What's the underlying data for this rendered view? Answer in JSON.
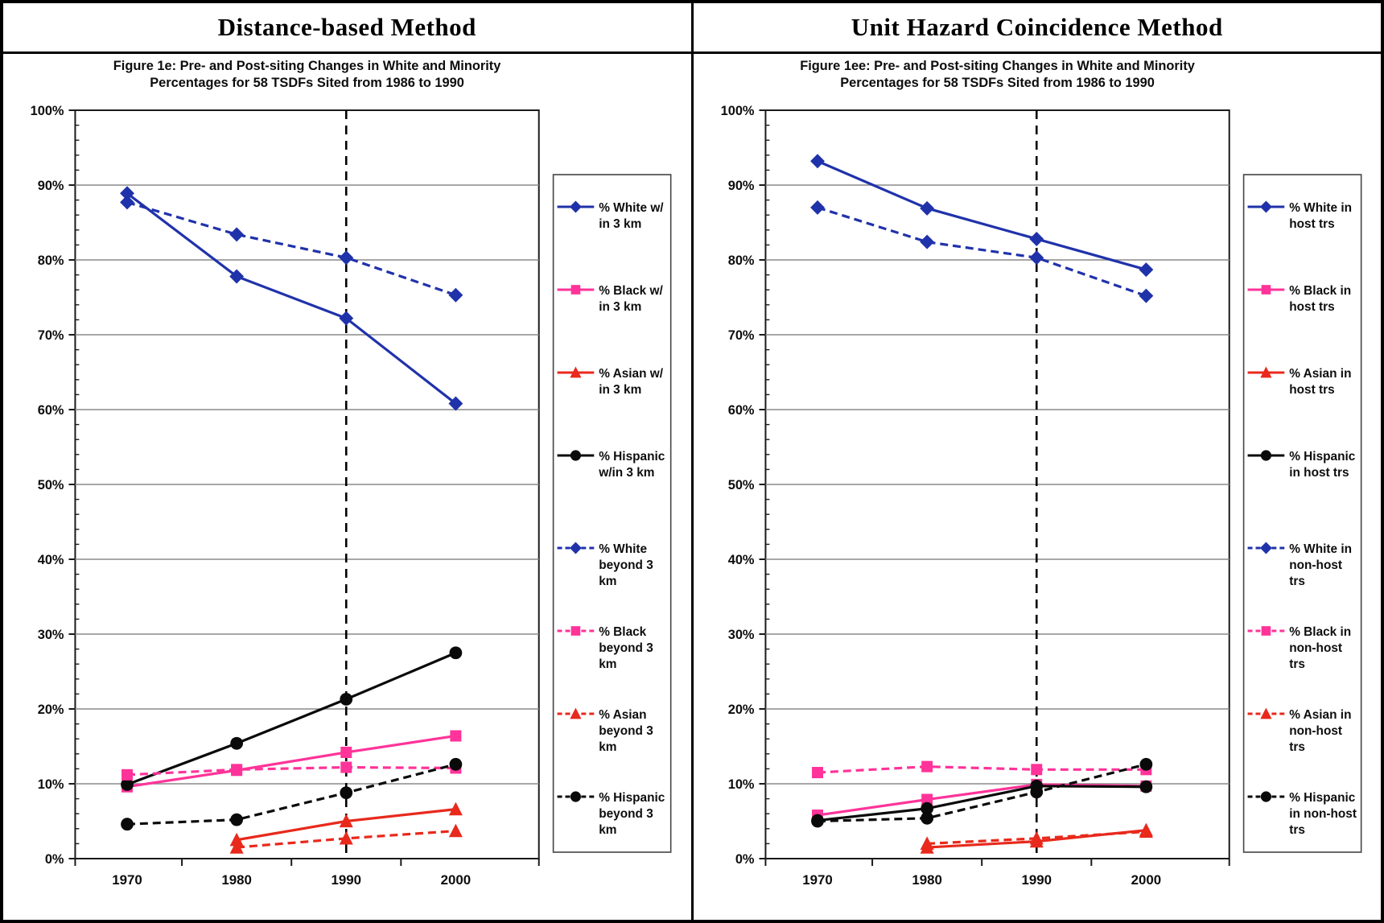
{
  "panels": [
    {
      "header": "Distance-based Method",
      "chart_data": {
        "type": "line",
        "title_lines": [
          "Figure 1e: Pre- and Post-siting Changes in White and Minority",
          "Percentages for 58 TSDFs Sited from 1986 to 1990"
        ],
        "categories": [
          "1970",
          "1980",
          "1990",
          "2000"
        ],
        "ylim": [
          0,
          100
        ],
        "ytick_values": [
          0,
          10,
          20,
          30,
          40,
          50,
          60,
          70,
          80,
          90,
          100
        ],
        "ytick_labels": [
          "0%",
          "10%",
          "20%",
          "30%",
          "40%",
          "50%",
          "60%",
          "70%",
          "80%",
          "90%",
          "100%"
        ],
        "minor_tick_step": 2,
        "grid": true,
        "grid_color": "#8a8a8a",
        "axis_color": "#1a1a1a",
        "vline_category": "1990",
        "legend_position": "right",
        "series": [
          {
            "name": "% White w/ in 3 km",
            "legend_lines": [
              "% White w/",
              "in 3 km"
            ],
            "color": "#2032AA",
            "marker": "diamond",
            "dash": false,
            "values": [
              88.9,
              77.8,
              72.2,
              60.8
            ]
          },
          {
            "name": "% Black w/ in 3 km",
            "legend_lines": [
              "% Black w/",
              "in 3 km"
            ],
            "color": "#FF3399",
            "marker": "square",
            "dash": false,
            "values": [
              9.6,
              11.8,
              14.2,
              16.4
            ]
          },
          {
            "name": "% Asian w/ in 3 km",
            "legend_lines": [
              "% Asian w/",
              "in 3 km"
            ],
            "color": "#E8291C",
            "marker": "triangle",
            "dash": false,
            "values": [
              null,
              2.5,
              5.0,
              6.6
            ]
          },
          {
            "name": "% Hispanic w/in 3 km",
            "legend_lines": [
              "% Hispanic",
              "w/in 3 km"
            ],
            "color": "#0a0a0a",
            "marker": "circle",
            "dash": false,
            "values": [
              9.9,
              15.4,
              21.3,
              27.5
            ]
          },
          {
            "name": "% White beyond 3 km",
            "legend_lines": [
              "% White",
              "beyond 3",
              "km"
            ],
            "color": "#2032AA",
            "marker": "diamond",
            "dash": true,
            "values": [
              87.7,
              83.4,
              80.3,
              75.3
            ]
          },
          {
            "name": "% Black beyond 3 km",
            "legend_lines": [
              "% Black",
              "beyond 3",
              "km"
            ],
            "color": "#FF3399",
            "marker": "square",
            "dash": true,
            "values": [
              11.2,
              11.9,
              12.2,
              12.1
            ]
          },
          {
            "name": "% Asian beyond 3 km",
            "legend_lines": [
              "% Asian",
              "beyond 3",
              "km"
            ],
            "color": "#E8291C",
            "marker": "triangle",
            "dash": true,
            "values": [
              null,
              1.5,
              2.7,
              3.7
            ]
          },
          {
            "name": "% Hispanic beyond 3 km",
            "legend_lines": [
              "% Hispanic",
              "beyond 3",
              "km"
            ],
            "color": "#0a0a0a",
            "marker": "circle",
            "dash": true,
            "values": [
              4.6,
              5.2,
              8.8,
              12.6
            ]
          }
        ]
      }
    },
    {
      "header": "Unit Hazard Coincidence Method",
      "chart_data": {
        "type": "line",
        "title_lines": [
          "Figure 1ee: Pre- and Post-siting Changes in White and Minority",
          "Percentages for 58 TSDFs Sited from 1986 to 1990"
        ],
        "categories": [
          "1970",
          "1980",
          "1990",
          "2000"
        ],
        "ylim": [
          0,
          100
        ],
        "ytick_values": [
          0,
          10,
          20,
          30,
          40,
          50,
          60,
          70,
          80,
          90,
          100
        ],
        "ytick_labels": [
          "0%",
          "10%",
          "20%",
          "30%",
          "40%",
          "50%",
          "60%",
          "70%",
          "80%",
          "90%",
          "100%"
        ],
        "minor_tick_step": 2,
        "grid": true,
        "grid_color": "#8a8a8a",
        "axis_color": "#1a1a1a",
        "vline_category": "1990",
        "legend_position": "right",
        "series": [
          {
            "name": "% White in host trs",
            "legend_lines": [
              "% White in",
              "host trs"
            ],
            "color": "#2032AA",
            "marker": "diamond",
            "dash": false,
            "values": [
              93.2,
              86.9,
              82.8,
              78.7
            ]
          },
          {
            "name": "% Black in host trs",
            "legend_lines": [
              "% Black in",
              "host trs"
            ],
            "color": "#FF3399",
            "marker": "square",
            "dash": false,
            "values": [
              5.8,
              7.9,
              9.9,
              9.7
            ]
          },
          {
            "name": "% Asian in host trs",
            "legend_lines": [
              "% Asian in",
              "host trs"
            ],
            "color": "#E8291C",
            "marker": "triangle",
            "dash": false,
            "values": [
              null,
              1.5,
              2.3,
              3.8
            ]
          },
          {
            "name": "% Hispanic in host trs",
            "legend_lines": [
              "% Hispanic",
              "in host trs"
            ],
            "color": "#0a0a0a",
            "marker": "circle",
            "dash": false,
            "values": [
              5.1,
              6.7,
              9.7,
              9.6
            ]
          },
          {
            "name": "% White in non-host trs",
            "legend_lines": [
              "% White in",
              "non-host",
              "trs"
            ],
            "color": "#2032AA",
            "marker": "diamond",
            "dash": true,
            "values": [
              87.0,
              82.4,
              80.3,
              75.2
            ]
          },
          {
            "name": "% Black in non-host trs",
            "legend_lines": [
              "% Black in",
              "non-host",
              "trs"
            ],
            "color": "#FF3399",
            "marker": "square",
            "dash": true,
            "values": [
              11.5,
              12.3,
              11.9,
              11.9
            ]
          },
          {
            "name": "% Asian in non-host trs",
            "legend_lines": [
              "% Asian in",
              "non-host",
              "trs"
            ],
            "color": "#E8291C",
            "marker": "triangle",
            "dash": true,
            "values": [
              null,
              2.0,
              2.7,
              3.6
            ]
          },
          {
            "name": "% Hispanic in non-host trs",
            "legend_lines": [
              "% Hispanic",
              "in non-host",
              "trs"
            ],
            "color": "#0a0a0a",
            "marker": "circle",
            "dash": true,
            "values": [
              5.0,
              5.4,
              8.9,
              12.6
            ]
          }
        ]
      }
    }
  ]
}
